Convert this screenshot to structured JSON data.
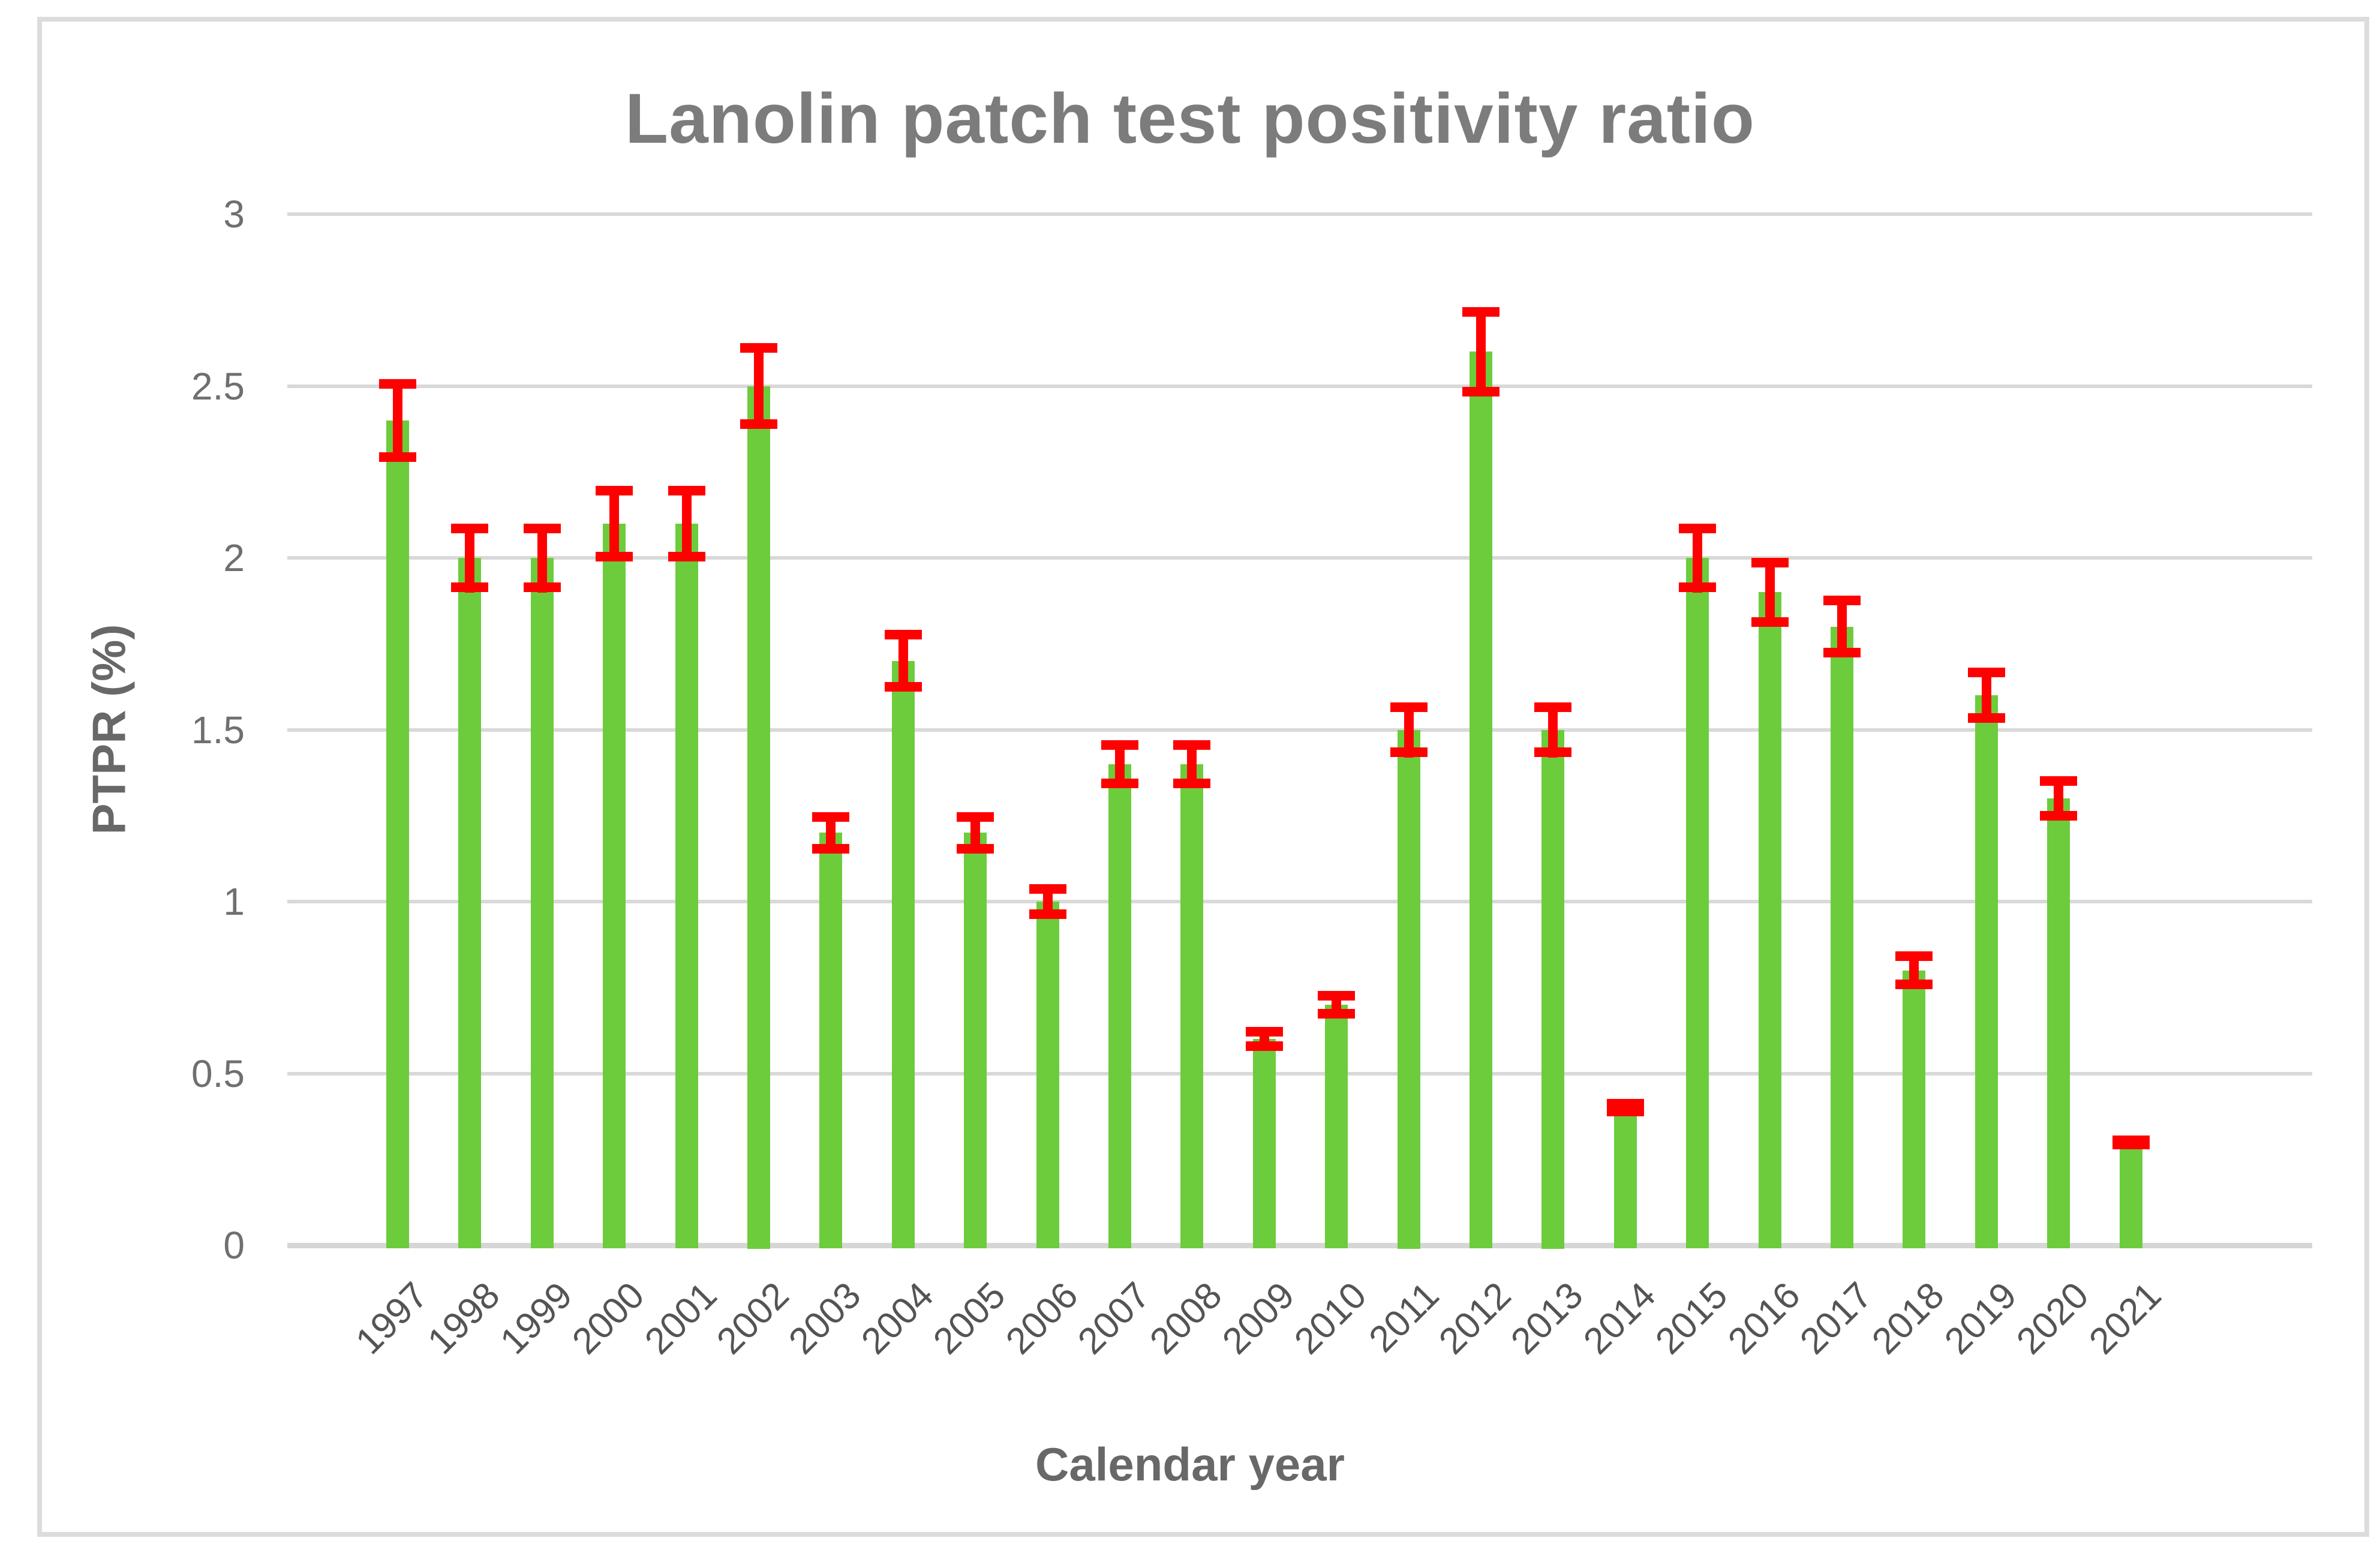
{
  "chart_data": {
    "type": "bar",
    "title": "Lanolin patch test positivity ratio",
    "xlabel": "Calendar year",
    "ylabel": "PTPR (%)",
    "categories": [
      "1997",
      "1998",
      "1999",
      "2000",
      "2001",
      "2002",
      "2003",
      "2004",
      "2005",
      "2006",
      "2007",
      "2008",
      "2009",
      "2010",
      "2011",
      "2012",
      "2013",
      "2014",
      "2015",
      "2016",
      "2017",
      "2018",
      "2019",
      "2020",
      "2021"
    ],
    "values": [
      2.4,
      2.0,
      2.0,
      2.1,
      2.1,
      2.5,
      1.2,
      1.7,
      1.2,
      1.0,
      1.4,
      1.4,
      0.6,
      0.7,
      1.5,
      2.6,
      1.5,
      0.4,
      2.0,
      1.9,
      1.8,
      0.8,
      1.6,
      1.3,
      0.3
    ],
    "errors": [
      0.12,
      0.1,
      0.1,
      0.11,
      0.11,
      0.125,
      0.06,
      0.09,
      0.06,
      0.05,
      0.07,
      0.07,
      0.035,
      0.04,
      0.08,
      0.13,
      0.08,
      0.025,
      0.1,
      0.1,
      0.09,
      0.055,
      0.08,
      0.065,
      0.02
    ],
    "ylim": [
      0,
      3
    ],
    "yticks": [
      0,
      0.5,
      1,
      1.5,
      2,
      2.5,
      3
    ],
    "grid": true,
    "legend_position": "none",
    "colors": {
      "bar": "#6CCC3C",
      "error_bar": "#FF0000",
      "gridline": "#D9D9D9",
      "axis_line": "#D6D6D6",
      "title_text": "#7C7C7C",
      "axis_title_text": "#686868",
      "tick_label_text": "#6F6F6F",
      "year_label_text": "#545454",
      "figure_border": "#DCDCDC",
      "background": "#FFFFFF"
    }
  }
}
